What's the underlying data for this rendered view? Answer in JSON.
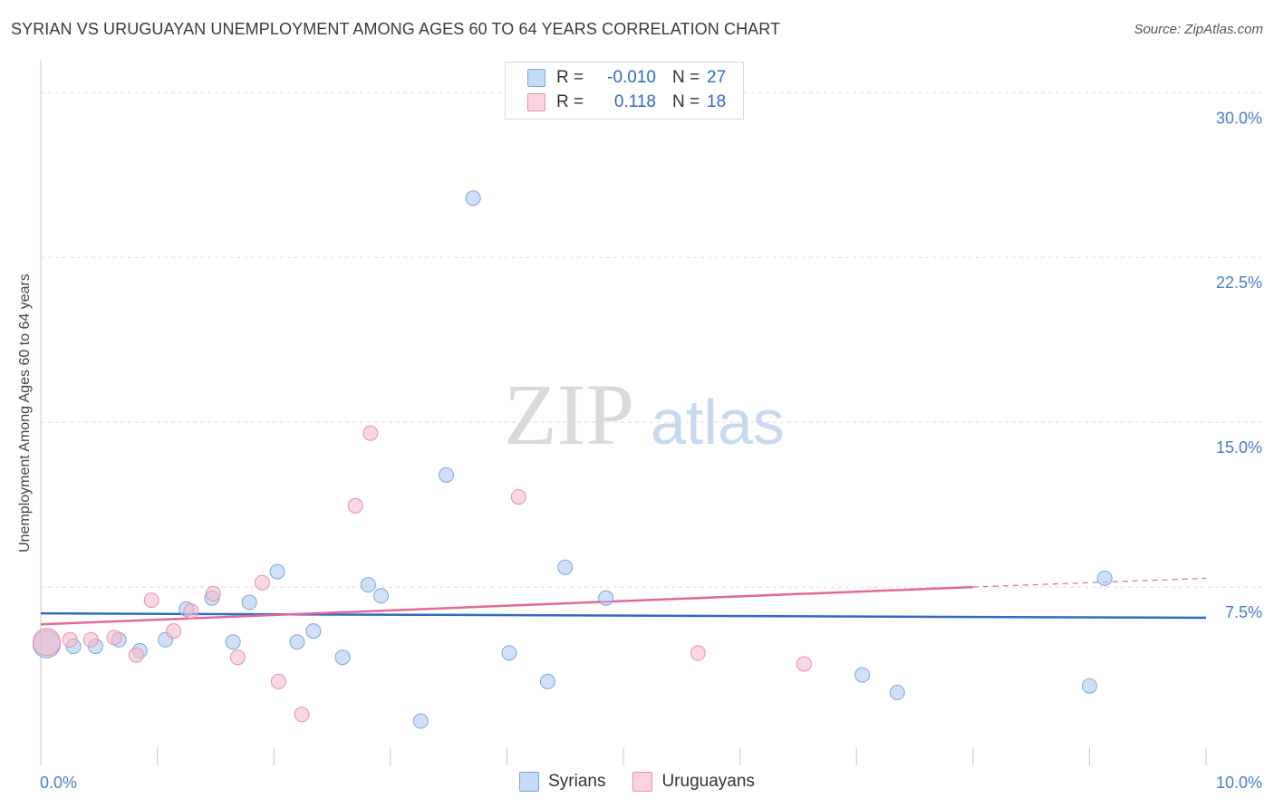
{
  "header": {
    "title": "SYRIAN VS URUGUAYAN UNEMPLOYMENT AMONG AGES 60 TO 64 YEARS CORRELATION CHART",
    "source": "Source: ZipAtlas.com"
  },
  "watermark": {
    "zip": "ZIP",
    "atlas": "atlas"
  },
  "legend": {
    "syrians": {
      "r_label": "R =",
      "r_value": "-0.010",
      "n_label": "N =",
      "n_value": "27",
      "color": "#a9c8f0"
    },
    "uruguayans": {
      "r_label": "R =",
      "r_value": "0.118",
      "n_label": "N =",
      "n_value": "18",
      "color": "#f6b8cb"
    }
  },
  "bottom_legend": {
    "syrians": "Syrians",
    "uruguayans": "Uruguayans"
  },
  "chart_data": {
    "type": "scatter",
    "title": "SYRIAN VS URUGUAYAN UNEMPLOYMENT AMONG AGES 60 TO 64 YEARS CORRELATION CHART",
    "xlabel": "",
    "ylabel": "Unemployment Among Ages 60 to 64 years",
    "xlim": [
      0,
      10
    ],
    "ylim": [
      0,
      31
    ],
    "x_tick_labels": [
      "0.0%",
      "10.0%"
    ],
    "y_ticks": [
      7.5,
      15.0,
      22.5,
      30.0
    ],
    "y_tick_labels": [
      "7.5%",
      "15.0%",
      "22.5%",
      "30.0%"
    ],
    "grid": true,
    "series": [
      {
        "name": "Syrians",
        "color": "#a9c8f0",
        "stroke": "#7aa6df",
        "trend_color": "#2b6cc4",
        "trend": {
          "x0": 0.0,
          "y0": 6.3,
          "x1": 10.0,
          "y1": 6.1
        },
        "points": [
          {
            "x": 0.05,
            "y": 4.9,
            "big": true
          },
          {
            "x": 0.28,
            "y": 4.8
          },
          {
            "x": 0.47,
            "y": 4.8
          },
          {
            "x": 0.67,
            "y": 5.1
          },
          {
            "x": 0.85,
            "y": 4.6
          },
          {
            "x": 1.07,
            "y": 5.1
          },
          {
            "x": 1.25,
            "y": 6.5
          },
          {
            "x": 1.47,
            "y": 7.0
          },
          {
            "x": 1.65,
            "y": 5.0
          },
          {
            "x": 1.79,
            "y": 6.8
          },
          {
            "x": 2.03,
            "y": 8.2
          },
          {
            "x": 2.2,
            "y": 5.0
          },
          {
            "x": 2.34,
            "y": 5.5
          },
          {
            "x": 2.59,
            "y": 4.3
          },
          {
            "x": 2.81,
            "y": 7.6
          },
          {
            "x": 2.92,
            "y": 7.1
          },
          {
            "x": 3.26,
            "y": 1.4
          },
          {
            "x": 3.48,
            "y": 12.6
          },
          {
            "x": 3.71,
            "y": 25.2
          },
          {
            "x": 4.02,
            "y": 4.5
          },
          {
            "x": 4.35,
            "y": 3.2
          },
          {
            "x": 4.5,
            "y": 8.4
          },
          {
            "x": 4.85,
            "y": 7.0
          },
          {
            "x": 7.05,
            "y": 3.5
          },
          {
            "x": 7.35,
            "y": 2.7
          },
          {
            "x": 9.0,
            "y": 3.0
          },
          {
            "x": 9.13,
            "y": 7.9
          }
        ]
      },
      {
        "name": "Uruguayans",
        "color": "#f6b8cb",
        "stroke": "#e98faa",
        "trend_color": "#e2679a",
        "trend": {
          "x0": 0.0,
          "y0": 5.8,
          "x1": 8.0,
          "y1": 7.5
        },
        "trend_dashed": {
          "x0": 8.0,
          "y0": 7.5,
          "x1": 10.0,
          "y1": 7.9
        },
        "points": [
          {
            "x": 0.05,
            "y": 5.0,
            "big": true
          },
          {
            "x": 0.25,
            "y": 5.1
          },
          {
            "x": 0.43,
            "y": 5.1
          },
          {
            "x": 0.63,
            "y": 5.2
          },
          {
            "x": 0.82,
            "y": 4.4
          },
          {
            "x": 0.95,
            "y": 6.9
          },
          {
            "x": 1.14,
            "y": 5.5
          },
          {
            "x": 1.29,
            "y": 6.4
          },
          {
            "x": 1.48,
            "y": 7.2
          },
          {
            "x": 1.69,
            "y": 4.3
          },
          {
            "x": 1.9,
            "y": 7.7
          },
          {
            "x": 2.04,
            "y": 3.2
          },
          {
            "x": 2.24,
            "y": 1.7
          },
          {
            "x": 2.7,
            "y": 11.2
          },
          {
            "x": 2.83,
            "y": 14.5
          },
          {
            "x": 4.1,
            "y": 11.6
          },
          {
            "x": 5.64,
            "y": 4.5
          },
          {
            "x": 6.55,
            "y": 4.0
          }
        ]
      }
    ]
  }
}
